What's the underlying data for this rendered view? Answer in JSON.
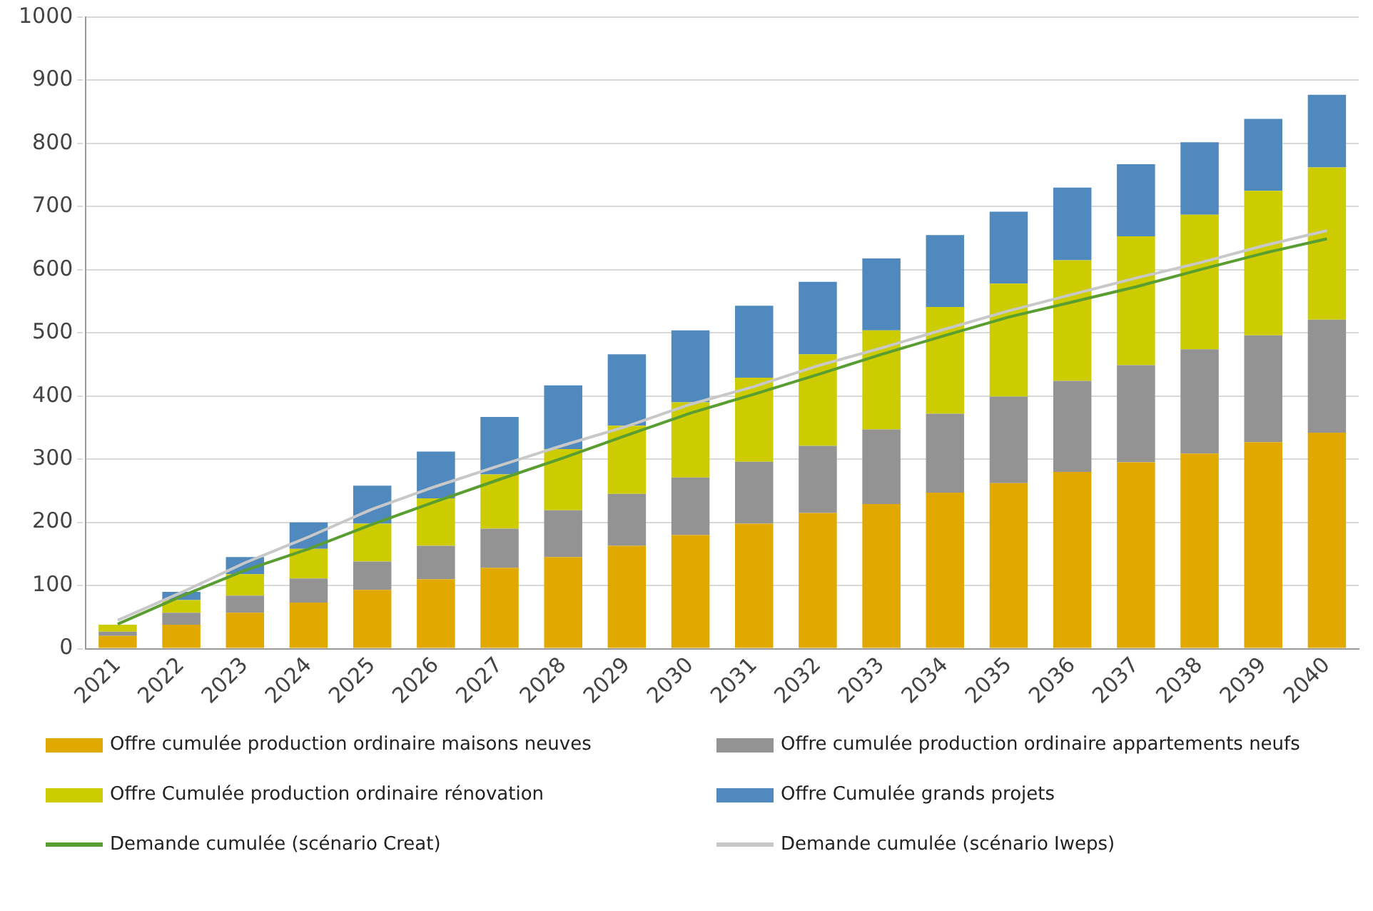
{
  "chart_data": {
    "type": "bar",
    "stacked": true,
    "categories": [
      "2021",
      "2022",
      "2023",
      "2024",
      "2025",
      "2026",
      "2027",
      "2028",
      "2029",
      "2030",
      "2031",
      "2032",
      "2033",
      "2034",
      "2035",
      "2036",
      "2037",
      "2038",
      "2039",
      "2040"
    ],
    "series": [
      {
        "name": "Offre cumulée production ordinaire maisons neuves",
        "color": "#e1a800",
        "values": [
          20,
          38,
          57,
          73,
          93,
          110,
          128,
          145,
          163,
          180,
          198,
          215,
          229,
          247,
          262,
          280,
          295,
          309,
          327,
          342
        ]
      },
      {
        "name": "Offre cumulée production ordinaire appartements neufs",
        "color": "#939393",
        "values": [
          7,
          19,
          27,
          38,
          45,
          53,
          62,
          74,
          82,
          91,
          98,
          106,
          118,
          125,
          137,
          144,
          154,
          165,
          169,
          179
        ]
      },
      {
        "name": "Offre Cumulée production ordinaire rénovation",
        "color": "#cccc00",
        "values": [
          11,
          20,
          34,
          47,
          60,
          75,
          86,
          97,
          108,
          119,
          133,
          145,
          157,
          169,
          179,
          191,
          204,
          213,
          229,
          241
        ]
      },
      {
        "name": "Offre Cumulée grands projets",
        "color": "#4f89bd",
        "values": [
          0,
          13,
          27,
          42,
          60,
          74,
          91,
          101,
          113,
          114,
          114,
          115,
          114,
          114,
          114,
          115,
          114,
          115,
          114,
          115
        ]
      },
      {
        "name": "Demande cumulée (scénario Creat)",
        "type": "line",
        "color": "#5a9e32",
        "values": [
          39,
          83,
          124,
          158,
          197,
          233,
          268,
          302,
          338,
          373,
          403,
          434,
          466,
          496,
          525,
          549,
          573,
          600,
          626,
          649
        ]
      },
      {
        "name": "Demande cumulée (scénario Iweps)",
        "type": "line",
        "color": "#c8c8c8",
        "values": [
          45,
          89,
          136,
          177,
          221,
          257,
          290,
          322,
          352,
          387,
          415,
          448,
          476,
          506,
          535,
          561,
          587,
          611,
          638,
          662
        ]
      }
    ],
    "ylim": [
      0,
      1000
    ],
    "yticks": [
      0,
      100,
      200,
      300,
      400,
      500,
      600,
      700,
      800,
      900,
      1000
    ],
    "grid": "y",
    "legend": "bottom",
    "marker": "none"
  }
}
